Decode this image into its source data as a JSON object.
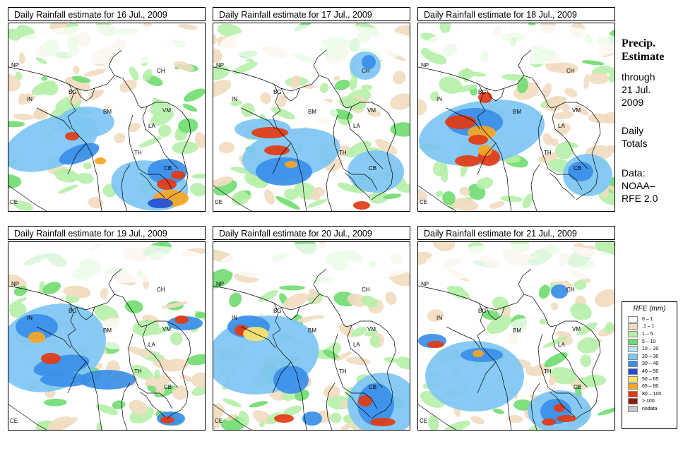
{
  "panels": [
    {
      "title": "Daily Rainfall estimate for  16 Jul., 2009",
      "date": "16 Jul., 2009"
    },
    {
      "title": "Daily Rainfall estimate for  17 Jul., 2009",
      "date": "17 Jul., 2009"
    },
    {
      "title": "Daily Rainfall estimate for  18 Jul., 2009",
      "date": "18 Jul., 2009"
    },
    {
      "title": "Daily Rainfall estimate for  19 Jul., 2009",
      "date": "19 Jul., 2009"
    },
    {
      "title": "Daily Rainfall estimate for  20 Jul., 2009",
      "date": "20 Jul., 2009"
    },
    {
      "title": "Daily Rainfall estimate for  21 Jul., 2009",
      "date": "21 Jul., 2009"
    }
  ],
  "country_labels": [
    "NP",
    "CH",
    "IN",
    "BG",
    "BM",
    "VM",
    "LA",
    "TH",
    "CB",
    "CE"
  ],
  "side": {
    "title_line1": "Precip.",
    "title_line2": "Estimate",
    "through": "through",
    "through_date_line1": "21 Jul.",
    "through_date_line2": "2009",
    "totals_line1": "Daily",
    "totals_line2": "Totals",
    "data_line1": "Data:",
    "data_line2": "NOAA–",
    "data_line3": "RFE 2.0"
  },
  "legend": {
    "title": "RFE (mm)",
    "items": [
      {
        "label": "0 – 1",
        "color": "#ffffff"
      },
      {
        "label": ".1 – 1",
        "color": "#f1dcc0"
      },
      {
        "label": "1 – 5",
        "color": "#b6f0a8"
      },
      {
        "label": "5 – 10",
        "color": "#6fdc6f"
      },
      {
        "label": "10 – 20",
        "color": "#b7e8f7"
      },
      {
        "label": "20 – 30",
        "color": "#7ec6f4"
      },
      {
        "label": "30 – 40",
        "color": "#3a8ee8"
      },
      {
        "label": "40 – 50",
        "color": "#1f4fd8"
      },
      {
        "label": "50 – 65",
        "color": "#fde46a"
      },
      {
        "label": "65 – 80",
        "color": "#f6a623"
      },
      {
        "label": "80 – 100",
        "color": "#e33a12"
      },
      {
        "label": "> 100",
        "color": "#8a1a0a"
      },
      {
        "label": "nodata",
        "color": "#c8c8c8"
      }
    ]
  }
}
